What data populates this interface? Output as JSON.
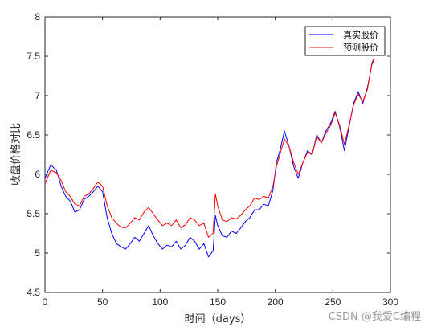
{
  "chart_data": {
    "type": "line",
    "xlabel": "时间（days）",
    "ylabel": "收盘价格对比",
    "xlim": [
      0,
      300
    ],
    "ylim": [
      4.5,
      8
    ],
    "xticks": [
      0,
      50,
      100,
      150,
      200,
      250,
      300
    ],
    "yticks": [
      4.5,
      5,
      5.5,
      6,
      6.5,
      7,
      7.5,
      8
    ],
    "grid": false,
    "legend_position": "top-right",
    "series": [
      {
        "name": "真实股价",
        "color": "#0000ff",
        "x": [
          0,
          5,
          10,
          14,
          18,
          22,
          26,
          30,
          34,
          38,
          42,
          46,
          50,
          54,
          58,
          62,
          66,
          70,
          74,
          78,
          82,
          86,
          90,
          94,
          98,
          102,
          106,
          110,
          114,
          118,
          122,
          126,
          130,
          134,
          138,
          142,
          146,
          148,
          150,
          154,
          158,
          162,
          166,
          170,
          174,
          178,
          182,
          186,
          190,
          194,
          198,
          201,
          204,
          208,
          212,
          216,
          220,
          224,
          228,
          232,
          236,
          240,
          244,
          248,
          252,
          256,
          260,
          264,
          268,
          272,
          276,
          280,
          284,
          286
        ],
        "y": [
          5.95,
          6.12,
          6.05,
          5.85,
          5.72,
          5.66,
          5.52,
          5.55,
          5.68,
          5.72,
          5.78,
          5.85,
          5.78,
          5.45,
          5.25,
          5.12,
          5.08,
          5.05,
          5.12,
          5.2,
          5.15,
          5.25,
          5.35,
          5.22,
          5.12,
          5.05,
          5.1,
          5.08,
          5.15,
          5.05,
          5.1,
          5.2,
          5.15,
          5.05,
          5.12,
          4.95,
          5.03,
          5.48,
          5.35,
          5.22,
          5.2,
          5.28,
          5.25,
          5.32,
          5.4,
          5.45,
          5.55,
          5.55,
          5.62,
          5.6,
          5.8,
          6.15,
          6.3,
          6.55,
          6.35,
          6.1,
          5.95,
          6.15,
          6.3,
          6.25,
          6.5,
          6.4,
          6.55,
          6.65,
          6.8,
          6.6,
          6.3,
          6.6,
          6.9,
          7.05,
          6.9,
          7.1,
          7.4,
          7.45
        ]
      },
      {
        "name": "预测股价",
        "color": "#ff0000",
        "x": [
          0,
          5,
          10,
          14,
          18,
          22,
          26,
          30,
          34,
          38,
          42,
          46,
          50,
          54,
          58,
          62,
          66,
          70,
          74,
          78,
          82,
          86,
          90,
          94,
          98,
          102,
          106,
          110,
          114,
          118,
          122,
          126,
          130,
          134,
          138,
          142,
          146,
          148,
          150,
          154,
          158,
          162,
          166,
          170,
          174,
          178,
          182,
          186,
          190,
          194,
          198,
          201,
          204,
          208,
          212,
          216,
          220,
          224,
          228,
          232,
          236,
          240,
          244,
          248,
          252,
          256,
          260,
          264,
          268,
          272,
          276,
          280,
          284,
          286
        ],
        "y": [
          5.88,
          6.05,
          6.02,
          5.92,
          5.78,
          5.72,
          5.62,
          5.6,
          5.72,
          5.75,
          5.82,
          5.9,
          5.85,
          5.6,
          5.45,
          5.38,
          5.33,
          5.32,
          5.38,
          5.45,
          5.42,
          5.52,
          5.58,
          5.5,
          5.42,
          5.35,
          5.38,
          5.35,
          5.42,
          5.32,
          5.36,
          5.45,
          5.42,
          5.35,
          5.38,
          5.2,
          5.25,
          5.75,
          5.6,
          5.42,
          5.4,
          5.45,
          5.43,
          5.48,
          5.55,
          5.6,
          5.7,
          5.68,
          5.72,
          5.7,
          5.85,
          6.1,
          6.25,
          6.45,
          6.35,
          6.15,
          6.0,
          6.15,
          6.28,
          6.25,
          6.48,
          6.4,
          6.52,
          6.62,
          6.78,
          6.62,
          6.38,
          6.62,
          6.88,
          7.02,
          6.92,
          7.08,
          7.42,
          7.48
        ]
      }
    ]
  },
  "watermark": "CSDN @我爱C编程"
}
